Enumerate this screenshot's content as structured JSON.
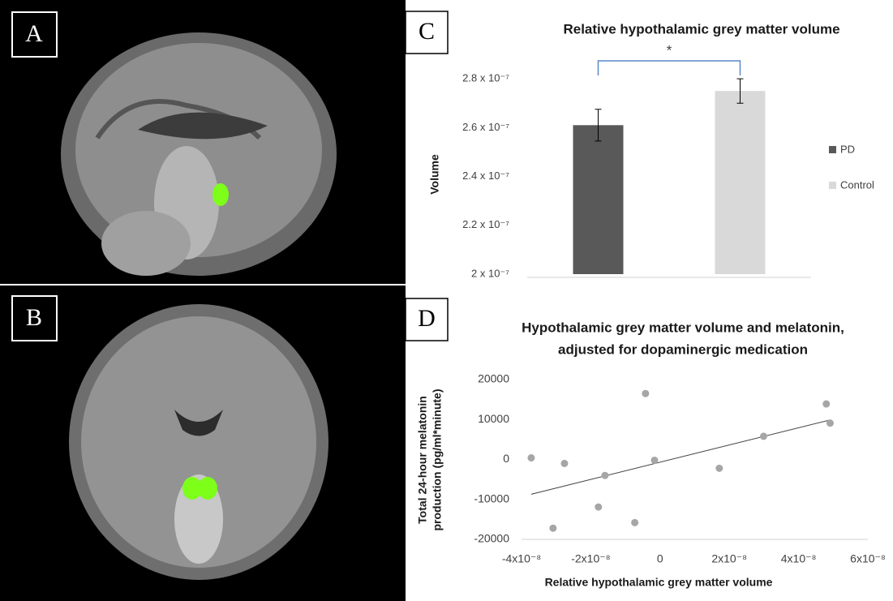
{
  "panel_labels": [
    "A",
    "B",
    "C",
    "D"
  ],
  "chart_data": [
    {
      "type": "bar",
      "title": "Relative hypothalamic grey matter volume",
      "y_label": "Volume",
      "categories": [
        null
      ],
      "series": [
        {
          "name": "PD",
          "color": "#595959",
          "values": [
            2.61e-07
          ],
          "errors": [
            6.5e-09
          ]
        },
        {
          "name": "Control",
          "color": "#d9d9d9",
          "values": [
            2.75e-07
          ],
          "errors": [
            5e-09
          ]
        }
      ],
      "annotation": "*",
      "ylim": [
        2e-07,
        2.9e-07
      ],
      "yticks": [
        {
          "value": 2e-07,
          "label": "2 x 10⁻⁷"
        },
        {
          "value": 2.2e-07,
          "label": "2.2 x 10⁻⁷"
        },
        {
          "value": 2.4e-07,
          "label": "2.4 x 10⁻⁷"
        },
        {
          "value": 2.6e-07,
          "label": "2.6 x 10⁻⁷"
        },
        {
          "value": 2.8e-07,
          "label": "2.8 x 10⁻⁷"
        }
      ],
      "grid": false,
      "legend": "right"
    },
    {
      "type": "scatter",
      "title": [
        "Hypothalamic grey matter volume and melatonin,",
        "adjusted for dopaminergic medication"
      ],
      "x_label": "Relative hypothalamic grey matter volume",
      "y_label": [
        "Total 24-hour melatonin",
        "production (pg/ml*minute)"
      ],
      "color": "#a6a6a6",
      "x": [
        -3.72e-08,
        -2.76e-08,
        -3.09e-08,
        -1.59e-08,
        -1.78e-08,
        -7.3e-09,
        -4.2e-09,
        -1.6e-09,
        1.71e-08,
        2.99e-08,
        4.8e-08,
        4.91e-08
      ],
      "values": [
        400,
        -1000,
        -17200,
        -4000,
        -11900,
        -15800,
        16500,
        -200,
        -2200,
        5800,
        13900,
        9100
      ],
      "trendline": {
        "x": [
          -3.72e-08,
          4.91e-08
        ],
        "y": [
          -8700,
          9900
        ]
      },
      "xlim": [
        -4e-08,
        6e-08
      ],
      "xticks": [
        {
          "value": -4e-08,
          "label": "-4x10⁻⁸"
        },
        {
          "value": -2e-08,
          "label": "-2x10⁻⁸"
        },
        0,
        {
          "value": 2e-08,
          "label": "2x10⁻⁸"
        },
        {
          "value": 4e-08,
          "label": "4x10⁻⁸"
        },
        {
          "value": 6e-08,
          "label": "6x10⁻⁸"
        }
      ],
      "ylim": [
        -20000,
        20000
      ],
      "yticks": [
        -20000,
        -10000,
        0,
        10000,
        20000
      ],
      "grid": false
    }
  ]
}
